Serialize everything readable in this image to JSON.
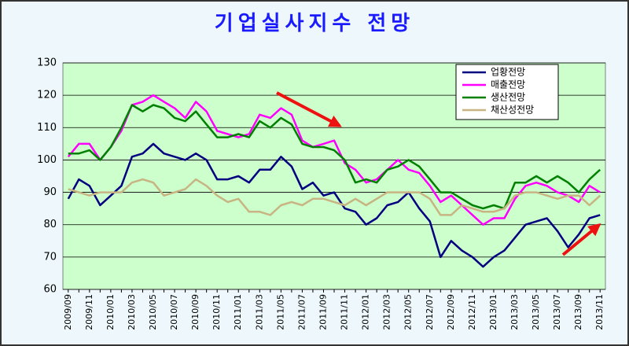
{
  "chart_data": {
    "type": "line",
    "title": "기업실사지수 전망",
    "categories": [
      "2009/09",
      null,
      "2009/11",
      null,
      "2010/01",
      null,
      "2010/03",
      null,
      "2010/05",
      null,
      "2010/07",
      null,
      "2010/09",
      null,
      "2010/11",
      null,
      "2011/01",
      null,
      "2011/03",
      null,
      "2011/05",
      null,
      "2011/07",
      null,
      "2011/09",
      null,
      "2011/11",
      null,
      "2012/01",
      null,
      "2012/03",
      null,
      "2012/05",
      null,
      "2012/07",
      null,
      "2012/09",
      null,
      "2012/11",
      null,
      "2013/01",
      null,
      "2013/03",
      null,
      "2013/05",
      null,
      "2013/07",
      null,
      "2013/09",
      null,
      "2013/11"
    ],
    "series": [
      {
        "name": "업황전망",
        "color": "#000080",
        "values": [
          88,
          94,
          92,
          86,
          89,
          92,
          101,
          102,
          105,
          102,
          101,
          100,
          102,
          100,
          94,
          94,
          95,
          93,
          97,
          97,
          101,
          98,
          91,
          93,
          89,
          90,
          85,
          84,
          80,
          82,
          86,
          87,
          90,
          85,
          81,
          70,
          75,
          72,
          70,
          67,
          70,
          72,
          76,
          80,
          81,
          82,
          78,
          73,
          77,
          82,
          83
        ]
      },
      {
        "name": "매출전망",
        "color": "#ff00ff",
        "values": [
          101,
          105,
          105,
          100,
          104,
          109,
          117,
          118,
          120,
          118,
          116,
          113,
          118,
          115,
          109,
          108,
          107,
          108,
          114,
          113,
          116,
          114,
          106,
          104,
          105,
          106,
          99,
          97,
          93,
          94,
          97,
          100,
          97,
          96,
          92,
          87,
          89,
          86,
          83,
          80,
          82,
          82,
          88,
          92,
          93,
          92,
          90,
          89,
          87,
          92,
          90
        ]
      },
      {
        "name": "생산전망",
        "color": "#008000",
        "values": [
          102,
          102,
          103,
          100,
          104,
          110,
          117,
          115,
          117,
          116,
          113,
          112,
          115,
          111,
          107,
          107,
          108,
          107,
          112,
          110,
          113,
          111,
          105,
          104,
          104,
          103,
          100,
          93,
          94,
          93,
          97,
          98,
          100,
          98,
          94,
          90,
          90,
          88,
          86,
          85,
          86,
          85,
          93,
          93,
          95,
          93,
          95,
          93,
          90,
          94,
          97
        ]
      },
      {
        "name": "채산성전망",
        "color": "#c8b482",
        "values": [
          91,
          90,
          89,
          90,
          90,
          90,
          93,
          94,
          93,
          89,
          90,
          91,
          94,
          92,
          89,
          87,
          88,
          84,
          84,
          83,
          86,
          87,
          86,
          88,
          88,
          87,
          86,
          88,
          86,
          88,
          90,
          90,
          90,
          90,
          88,
          83,
          83,
          86,
          85,
          84,
          84,
          85,
          89,
          90,
          90,
          89,
          88,
          89,
          89,
          86,
          89
        ]
      }
    ],
    "ylim": [
      60,
      130
    ],
    "yticks": [
      60,
      70,
      80,
      90,
      100,
      110,
      120,
      130
    ],
    "grid": true,
    "legend": "upper right"
  }
}
